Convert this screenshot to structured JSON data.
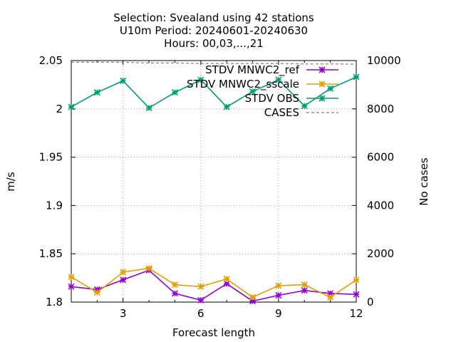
{
  "chart_data": {
    "type": "line",
    "title_lines": [
      "Selection: Svealand using    42 stations",
      "U10m   Period: 20240601-20240630",
      "Hours: 00,03,...,21"
    ],
    "xlabel": "Forecast length",
    "ylabel": "m/s",
    "y2label": "No cases",
    "xlim": [
      1,
      12
    ],
    "ylim": [
      1.8,
      2.05
    ],
    "y2lim": [
      0,
      10000
    ],
    "xticks": [
      "3",
      "6",
      "9",
      "12"
    ],
    "yticks": [
      "1.8",
      "1.85",
      "1.9",
      "1.95",
      "2",
      "2.05"
    ],
    "y2ticks": [
      "0",
      "2000",
      "4000",
      "6000",
      "8000",
      "10000"
    ],
    "grid": true,
    "legend_position": "top-right",
    "x": [
      1,
      2,
      3,
      4,
      5,
      6,
      7,
      8,
      9,
      10,
      11,
      12
    ],
    "series": [
      {
        "name": "STDV MNWC2_ref",
        "color": "#9400d3",
        "marker": "x",
        "axis": "y",
        "values": [
          1.816,
          1.813,
          1.823,
          1.833,
          1.809,
          1.802,
          1.819,
          1.801,
          1.807,
          1.812,
          1.809,
          1.808
        ]
      },
      {
        "name": "STDV MNWC2_sscale",
        "color": "#e69f00",
        "marker": "x",
        "axis": "y",
        "values": [
          1.826,
          1.81,
          1.831,
          1.835,
          1.818,
          1.816,
          1.824,
          1.805,
          1.817,
          1.818,
          1.805,
          1.823
        ]
      },
      {
        "name": "STDV OBS",
        "color": "#009e73",
        "marker": "x",
        "axis": "y",
        "values": [
          2.002,
          2.017,
          2.029,
          2.001,
          2.017,
          2.03,
          2.002,
          2.018,
          2.03,
          2.003,
          2.021,
          2.033
        ]
      },
      {
        "name": "CASES",
        "color": "#808080",
        "dashed": true,
        "axis": "y2",
        "values": [
          9930,
          9930,
          9930,
          9900,
          9900,
          9880,
          9880,
          9880,
          9880,
          9860,
          9860,
          9850
        ]
      }
    ]
  }
}
